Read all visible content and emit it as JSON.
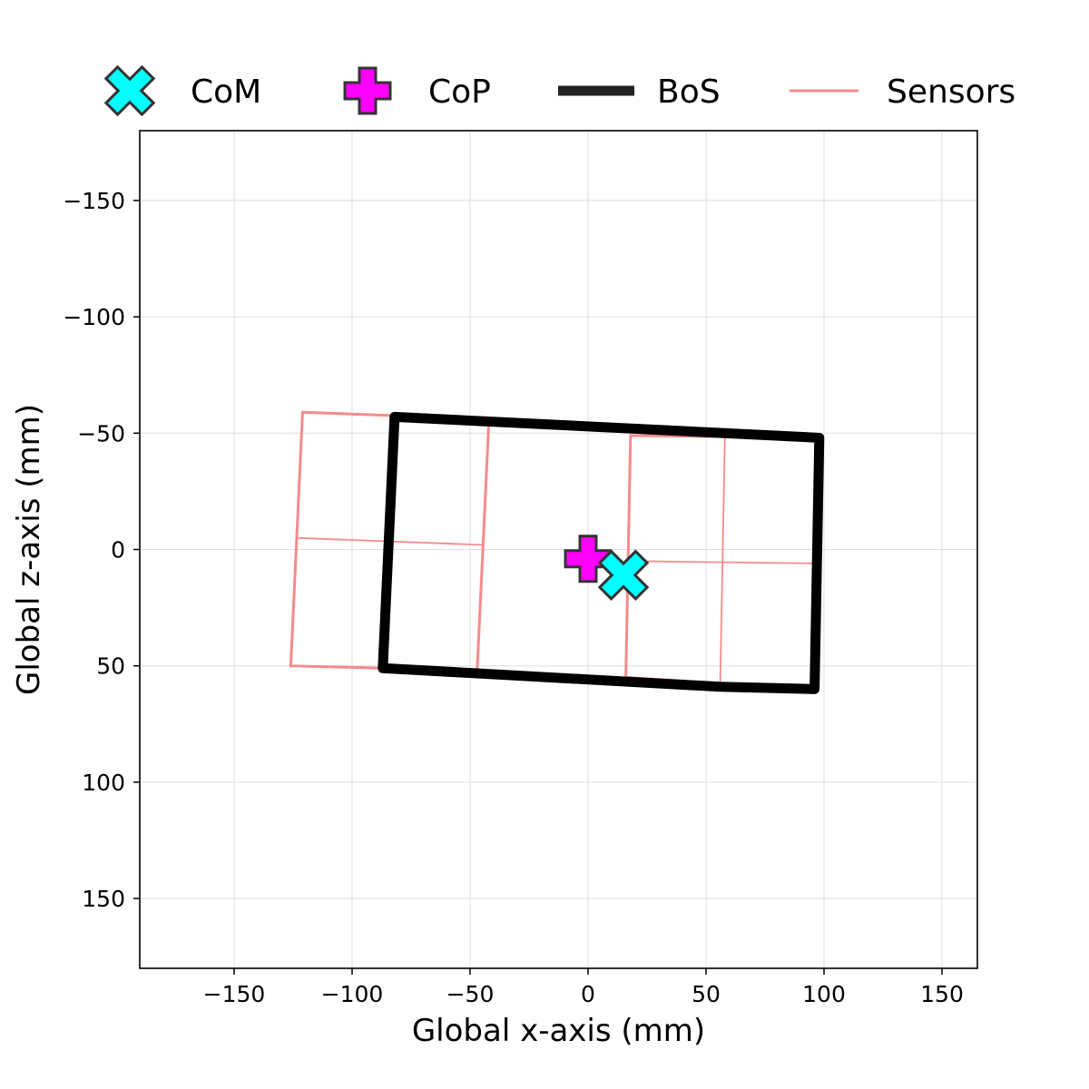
{
  "chart_data": {
    "type": "scatter",
    "xlabel": "Global x-axis (mm)",
    "ylabel": "Global z-axis (mm)",
    "xlim": [
      -190,
      165
    ],
    "ylim": [
      180,
      -180
    ],
    "y_inverted": true,
    "grid": true,
    "legend_placement": "top",
    "x_ticks": [
      -150,
      -100,
      -50,
      0,
      50,
      100,
      150
    ],
    "y_ticks": [
      -150,
      -100,
      -50,
      0,
      50,
      100,
      150
    ],
    "legend": [
      {
        "label": "CoM",
        "marker": "x-cross",
        "color": "#00ffff"
      },
      {
        "label": "CoP",
        "marker": "plus",
        "color": "#ff00ff"
      },
      {
        "label": "BoS",
        "marker": "thick-line",
        "color": "#222222"
      },
      {
        "label": "Sensors",
        "marker": "line",
        "color": "#f88a8a"
      }
    ],
    "com": {
      "x": 15,
      "z": 11
    },
    "cop": {
      "x": 0,
      "z": 4
    },
    "bos": [
      [
        -82,
        -57
      ],
      [
        98,
        -48
      ],
      [
        96,
        60
      ],
      [
        56,
        59
      ],
      [
        -87,
        51
      ]
    ],
    "sensors": {
      "outlines": [
        [
          [
            -121,
            -59
          ],
          [
            -42,
            -56
          ],
          [
            -47,
            52
          ],
          [
            -126,
            50
          ]
        ],
        [
          [
            18,
            -49
          ],
          [
            98,
            -48
          ],
          [
            96,
            60
          ],
          [
            16,
            55
          ]
        ]
      ],
      "dividers": [
        [
          [
            -124,
            -5
          ],
          [
            -45,
            -2
          ]
        ],
        [
          [
            20,
            5
          ],
          [
            97,
            6
          ]
        ],
        [
          [
            58,
            -49
          ],
          [
            56,
            58
          ]
        ]
      ]
    },
    "colors": {
      "com": "#00ffff",
      "cop": "#ff00ff",
      "bos": "#000000",
      "sensors": "#f88a8a",
      "marker_edge": "#333333"
    }
  }
}
